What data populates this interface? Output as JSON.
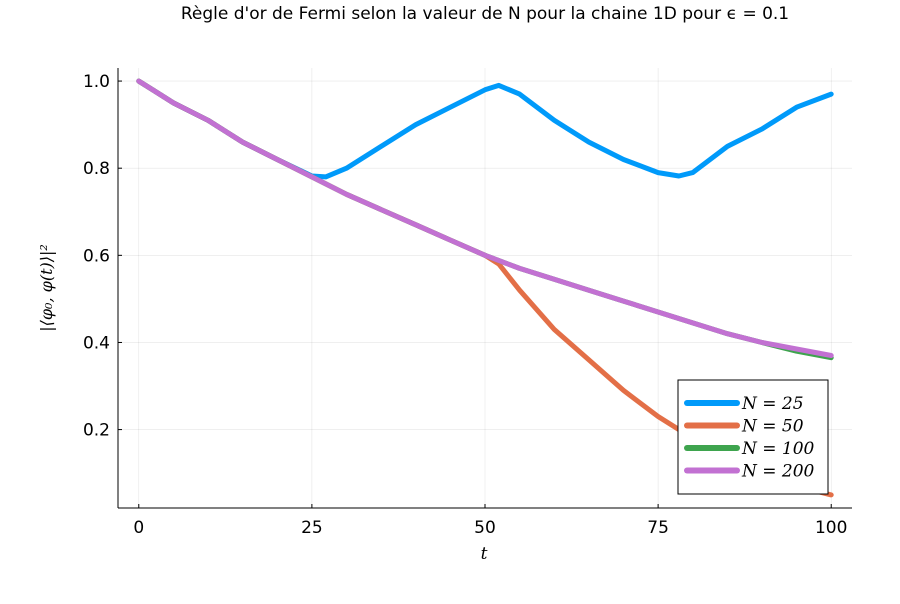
{
  "chart_data": {
    "type": "line",
    "title": "Règle d'or de Fermi selon la valeur de N pour la chaine 1D pour ϵ = 0.1",
    "xlabel": "t",
    "ylabel": "|⟨φ₀, φ(t)⟩|²",
    "xlim": [
      -3,
      103
    ],
    "ylim": [
      0.02,
      1.03
    ],
    "xticks": [
      0,
      25,
      50,
      75,
      100
    ],
    "xtick_labels": [
      "0",
      "25",
      "50",
      "75",
      "100"
    ],
    "yticks": [
      0.2,
      0.4,
      0.6,
      0.8,
      1.0
    ],
    "ytick_labels": [
      "0.2",
      "0.4",
      "0.6",
      "0.8",
      "1.0"
    ],
    "grid": true,
    "legend_position": "bottom-right",
    "series": [
      {
        "name": "N = 25",
        "color": "#009AFA",
        "x": [
          0,
          2,
          5,
          10,
          15,
          20,
          25,
          27,
          30,
          35,
          40,
          45,
          50,
          52,
          55,
          60,
          65,
          70,
          75,
          78,
          80,
          85,
          90,
          95,
          100
        ],
        "y": [
          1.0,
          0.98,
          0.95,
          0.91,
          0.86,
          0.82,
          0.782,
          0.78,
          0.8,
          0.85,
          0.9,
          0.94,
          0.98,
          0.99,
          0.97,
          0.91,
          0.86,
          0.82,
          0.79,
          0.782,
          0.79,
          0.85,
          0.89,
          0.94,
          0.97
        ]
      },
      {
        "name": "N = 50",
        "color": "#E36F47",
        "x": [
          0,
          2,
          5,
          10,
          15,
          20,
          25,
          30,
          35,
          40,
          45,
          50,
          52,
          55,
          60,
          65,
          70,
          75,
          80,
          85,
          90,
          95,
          100
        ],
        "y": [
          1.0,
          0.98,
          0.95,
          0.91,
          0.86,
          0.82,
          0.78,
          0.74,
          0.705,
          0.67,
          0.635,
          0.6,
          0.58,
          0.52,
          0.43,
          0.36,
          0.29,
          0.23,
          0.18,
          0.14,
          0.1,
          0.07,
          0.05
        ]
      },
      {
        "name": "N = 100",
        "color": "#3EA44E",
        "x": [
          0,
          2,
          5,
          10,
          15,
          20,
          25,
          30,
          35,
          40,
          45,
          50,
          55,
          60,
          65,
          70,
          75,
          80,
          85,
          90,
          95,
          100
        ],
        "y": [
          1.0,
          0.98,
          0.95,
          0.91,
          0.86,
          0.82,
          0.78,
          0.74,
          0.705,
          0.67,
          0.635,
          0.6,
          0.57,
          0.545,
          0.52,
          0.495,
          0.47,
          0.445,
          0.42,
          0.4,
          0.38,
          0.365
        ]
      },
      {
        "name": "N = 200",
        "color": "#C271D2",
        "x": [
          0,
          2,
          5,
          10,
          15,
          20,
          25,
          30,
          35,
          40,
          45,
          50,
          55,
          60,
          65,
          70,
          75,
          80,
          85,
          90,
          95,
          100
        ],
        "y": [
          1.0,
          0.98,
          0.95,
          0.91,
          0.86,
          0.82,
          0.78,
          0.74,
          0.705,
          0.67,
          0.635,
          0.6,
          0.57,
          0.545,
          0.52,
          0.495,
          0.47,
          0.445,
          0.42,
          0.4,
          0.385,
          0.37
        ]
      }
    ]
  }
}
